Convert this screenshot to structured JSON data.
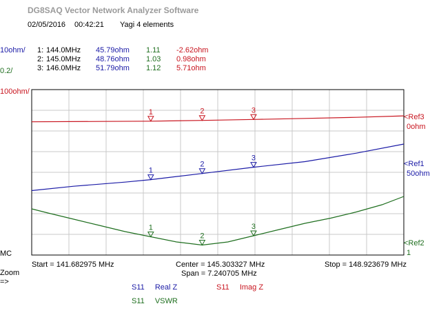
{
  "app": {
    "title": "DG8SAQ Vector Network Analyzer Software",
    "date": "02/05/2016",
    "time": "00:42:21",
    "description": "Yagi 4 elements"
  },
  "colors": {
    "real_z": "#1a1aa6",
    "imag_z": "#c8141e",
    "vswr": "#1e6e1e",
    "grid": "#c8c8c8",
    "axis": "#000000"
  },
  "scales": {
    "s1": "10ohm/",
    "s2": "0.2/",
    "s3": "100ohm/",
    "mc": "MC",
    "zoom": "Zoom",
    "zoom_arrow": "=>"
  },
  "markers": [
    {
      "label": "1:",
      "freq": "144.0MHz",
      "realz": "45.79ohm",
      "vswr": "1.11",
      "imagz": "-2.62ohm"
    },
    {
      "label": "2:",
      "freq": "145.0MHz",
      "realz": "48.76ohm",
      "vswr": "1.03",
      "imagz": "0.98ohm"
    },
    {
      "label": "3:",
      "freq": "146.0MHz",
      "realz": "51.79ohm",
      "vswr": "1.12",
      "imagz": "5.71ohm"
    }
  ],
  "refs": [
    {
      "name": "<Ref3",
      "value": "0ohm"
    },
    {
      "name": "<Ref1",
      "value": "50ohm"
    },
    {
      "name": "<Ref2",
      "value": "1"
    }
  ],
  "freq_axis": {
    "start": "Start = 141.682975 MHz",
    "center": "Center = 145.303327 MHz",
    "span": "Span = 7.240705 MHz",
    "stop": "Stop = 148.923679 MHz"
  },
  "legend": [
    {
      "param": "S11",
      "name": "Real Z"
    },
    {
      "param": "S11",
      "name": "Imag Z"
    },
    {
      "param": "S11",
      "name": "VSWR"
    }
  ],
  "chart_data": {
    "type": "line",
    "xlim": [
      141.682975,
      148.923679
    ],
    "x_unit": "MHz",
    "grid": true,
    "marker_freqs": [
      144.0,
      145.0,
      146.0
    ],
    "series": [
      {
        "name": "Real Z",
        "scale": "10ohm/div",
        "ref": 50,
        "x": [
          141.683,
          142.5,
          143.5,
          144.0,
          145.0,
          146.0,
          147.0,
          148.0,
          148.924
        ],
        "y": [
          40.5,
          42.6,
          44.6,
          45.79,
          48.76,
          51.79,
          54.5,
          58.6,
          63.0
        ]
      },
      {
        "name": "Imag Z",
        "scale": "100ohm/div",
        "ref": 0,
        "x": [
          141.683,
          143.0,
          144.0,
          145.0,
          146.0,
          147.0,
          148.0,
          148.924
        ],
        "y": [
          -5.5,
          -4.0,
          -2.62,
          0.98,
          5.71,
          10.5,
          16.0,
          23.0
        ]
      },
      {
        "name": "VSWR",
        "scale": "0.2/div",
        "ref": 1,
        "x": [
          141.683,
          142.0,
          142.5,
          143.0,
          143.5,
          144.0,
          144.5,
          145.0,
          145.5,
          146.0,
          146.5,
          147.0,
          147.5,
          148.0,
          148.5,
          148.924
        ],
        "y": [
          1.38,
          1.34,
          1.28,
          1.22,
          1.16,
          1.11,
          1.06,
          1.03,
          1.06,
          1.12,
          1.18,
          1.24,
          1.29,
          1.35,
          1.42,
          1.5
        ]
      }
    ]
  }
}
